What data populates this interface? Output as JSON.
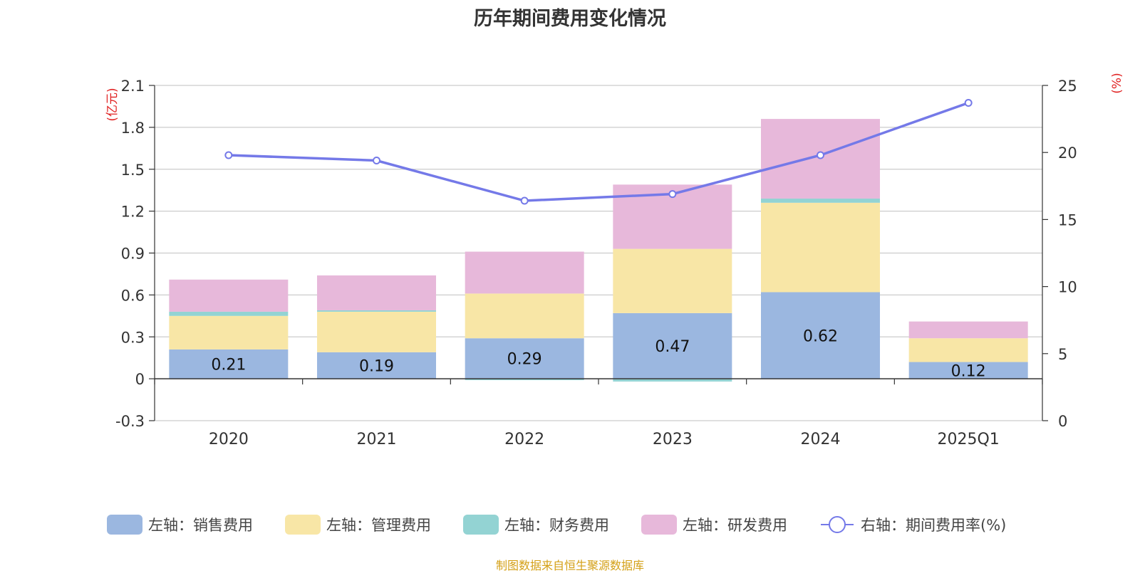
{
  "chart_data": {
    "type": "bar",
    "title": "历年期间费用变化情况",
    "categories": [
      "2020",
      "2021",
      "2022",
      "2023",
      "2024",
      "2025Q1"
    ],
    "left_axis": {
      "unit_label": "(亿元)",
      "ticks": [
        "2.1",
        "1.8",
        "1.5",
        "1.2",
        "0.9",
        "0.6",
        "0.3",
        "0",
        "-0.3"
      ],
      "ylim": [
        -0.3,
        2.1
      ]
    },
    "right_axis": {
      "unit_label": "(%)",
      "ticks": [
        "25",
        "20",
        "15",
        "10",
        "5",
        "0"
      ],
      "ylim": [
        0,
        25
      ]
    },
    "series": [
      {
        "name": "左轴：销售费用",
        "type": "bar",
        "stack": "left",
        "color": "#9bb7e0",
        "values": [
          0.21,
          0.19,
          0.29,
          0.47,
          0.62,
          0.12
        ],
        "labels": [
          "0.21",
          "0.19",
          "0.29",
          "0.47",
          "0.62",
          "0.12"
        ]
      },
      {
        "name": "左轴：管理费用",
        "type": "bar",
        "stack": "left",
        "color": "#f8e6a6",
        "values": [
          0.24,
          0.29,
          0.32,
          0.46,
          0.64,
          0.17
        ]
      },
      {
        "name": "左轴：财务费用",
        "type": "bar",
        "stack": "left",
        "color": "#93d3d3",
        "values": [
          0.03,
          0.01,
          -0.01,
          -0.02,
          0.03,
          0.0
        ]
      },
      {
        "name": "左轴：研发费用",
        "type": "bar",
        "stack": "left",
        "color": "#e7b8da",
        "values": [
          0.23,
          0.25,
          0.3,
          0.46,
          0.57,
          0.12
        ]
      },
      {
        "name": "右轴：期间费用率(%)",
        "type": "line",
        "axis": "right",
        "color": "#7479e8",
        "values": [
          19.8,
          19.4,
          16.4,
          16.9,
          19.8,
          23.7
        ]
      }
    ],
    "grid": true,
    "legend_position": "bottom"
  },
  "footer": {
    "source": "制图数据来自恒生聚源数据库"
  }
}
